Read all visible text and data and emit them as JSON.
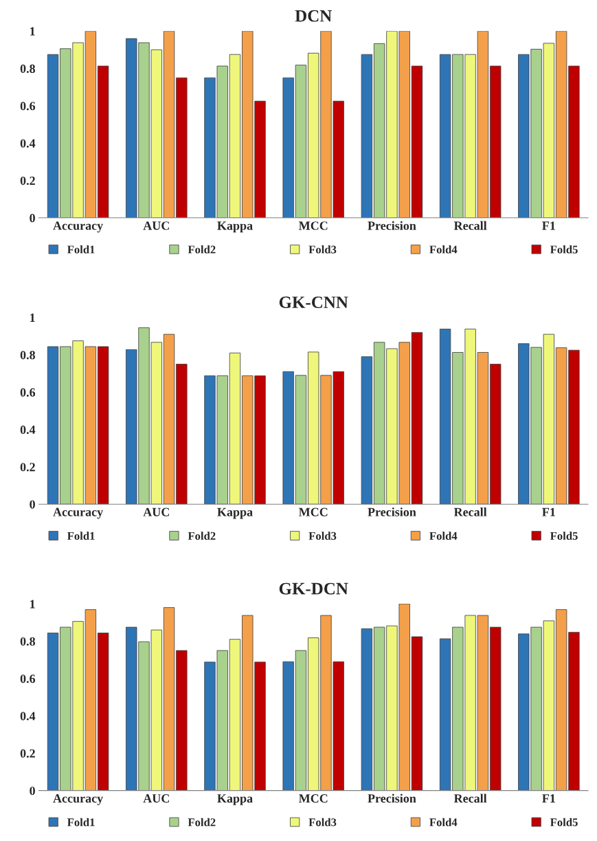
{
  "chart_data": [
    {
      "type": "bar",
      "title": "DCN",
      "categories": [
        "Accuracy",
        "AUC",
        "Kappa",
        "MCC",
        "Precision",
        "Recall",
        "F1"
      ],
      "ylim": [
        0,
        1
      ],
      "yticks": [
        0,
        0.2,
        0.4,
        0.6,
        0.8,
        1
      ],
      "grid": false,
      "legend": "bottom",
      "series": [
        {
          "name": "Fold1",
          "color": "#2e75b6",
          "values": [
            0.875,
            0.96,
            0.75,
            0.75,
            0.875,
            0.875,
            0.875
          ]
        },
        {
          "name": "Fold2",
          "color": "#a9d18e",
          "values": [
            0.906,
            0.938,
            0.813,
            0.818,
            0.933,
            0.875,
            0.903
          ]
        },
        {
          "name": "Fold3",
          "color": "#eef77a",
          "values": [
            0.938,
            0.9,
            0.875,
            0.882,
            1.0,
            0.875,
            0.935
          ]
        },
        {
          "name": "Fold4",
          "color": "#f4a04a",
          "values": [
            1.0,
            1.0,
            1.0,
            1.0,
            1.0,
            1.0,
            1.0
          ]
        },
        {
          "name": "Fold5",
          "color": "#c00000",
          "values": [
            0.813,
            0.75,
            0.625,
            0.625,
            0.813,
            0.813,
            0.813
          ]
        }
      ]
    },
    {
      "type": "bar",
      "title": "GK-CNN",
      "categories": [
        "Accuracy",
        "AUC",
        "Kappa",
        "MCC",
        "Precision",
        "Recall",
        "F1"
      ],
      "ylim": [
        0,
        1
      ],
      "yticks": [
        0,
        0.2,
        0.4,
        0.6,
        0.8,
        1
      ],
      "grid": false,
      "legend": "bottom",
      "series": [
        {
          "name": "Fold1",
          "color": "#2e75b6",
          "values": [
            0.844,
            0.828,
            0.688,
            0.71,
            0.79,
            0.938,
            0.86
          ]
        },
        {
          "name": "Fold2",
          "color": "#a9d18e",
          "values": [
            0.844,
            0.945,
            0.688,
            0.69,
            0.867,
            0.813,
            0.84
          ]
        },
        {
          "name": "Fold3",
          "color": "#eef77a",
          "values": [
            0.875,
            0.867,
            0.81,
            0.815,
            0.833,
            0.938,
            0.91
          ]
        },
        {
          "name": "Fold4",
          "color": "#f4a04a",
          "values": [
            0.844,
            0.91,
            0.688,
            0.69,
            0.867,
            0.813,
            0.838
          ]
        },
        {
          "name": "Fold5",
          "color": "#c00000",
          "values": [
            0.844,
            0.75,
            0.688,
            0.71,
            0.92,
            0.75,
            0.825
          ]
        }
      ]
    },
    {
      "type": "bar",
      "title": "GK-DCN",
      "categories": [
        "Accuracy",
        "AUC",
        "Kappa",
        "MCC",
        "Precision",
        "Recall",
        "F1"
      ],
      "ylim": [
        0,
        1
      ],
      "yticks": [
        0,
        0.2,
        0.4,
        0.6,
        0.8,
        1
      ],
      "grid": false,
      "legend": "bottom",
      "series": [
        {
          "name": "Fold1",
          "color": "#2e75b6",
          "values": [
            0.844,
            0.875,
            0.688,
            0.69,
            0.867,
            0.813,
            0.839
          ]
        },
        {
          "name": "Fold2",
          "color": "#a9d18e",
          "values": [
            0.875,
            0.797,
            0.75,
            0.75,
            0.875,
            0.875,
            0.875
          ]
        },
        {
          "name": "Fold3",
          "color": "#eef77a",
          "values": [
            0.906,
            0.86,
            0.81,
            0.818,
            0.882,
            0.938,
            0.909
          ]
        },
        {
          "name": "Fold4",
          "color": "#f4a04a",
          "values": [
            0.969,
            0.98,
            0.938,
            0.938,
            1.0,
            0.938,
            0.969
          ]
        },
        {
          "name": "Fold5",
          "color": "#c00000",
          "values": [
            0.844,
            0.75,
            0.688,
            0.69,
            0.824,
            0.875,
            0.848
          ]
        }
      ]
    }
  ]
}
